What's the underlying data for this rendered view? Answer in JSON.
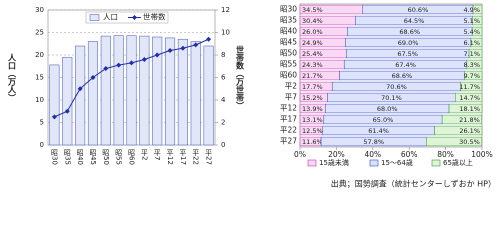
{
  "chart_data": [
    {
      "type": "combo",
      "categories": [
        "昭30",
        "昭35",
        "昭40",
        "昭45",
        "昭50",
        "昭55",
        "昭60",
        "平2",
        "平7",
        "平12",
        "平17",
        "平22",
        "平27"
      ],
      "series": [
        {
          "name": "人口",
          "type": "bar",
          "color": "#e1e6f8",
          "values": [
            17.8,
            19.5,
            22,
            23,
            24.2,
            24.3,
            24.3,
            24.2,
            24,
            23.8,
            23.5,
            23,
            22
          ]
        },
        {
          "name": "世帯数",
          "type": "line",
          "axis": "y2",
          "color": "#1f2fa8",
          "values": [
            2.5,
            3,
            5,
            6,
            6.8,
            7.1,
            7.3,
            7.6,
            8,
            8.4,
            8.6,
            8.9,
            9.4
          ]
        }
      ],
      "ylabel": "人口（万人）",
      "y2label": "世帯数（万世帯）",
      "ylim": [
        0,
        30
      ],
      "yticks": [
        0,
        5,
        10,
        15,
        20,
        25,
        30
      ],
      "y2lim": [
        0,
        12
      ],
      "y2ticks": [
        0,
        2,
        4,
        6,
        8,
        10,
        12
      ],
      "grid": true
    },
    {
      "type": "stackedbar",
      "categories": [
        "昭30",
        "昭35",
        "昭40",
        "昭45",
        "昭50",
        "昭55",
        "昭60",
        "平2",
        "平7",
        "平12",
        "平17",
        "平22",
        "平27"
      ],
      "series": [
        {
          "name": "15歳未満",
          "color": "#f8d8f3",
          "values": [
            34.5,
            30.4,
            26.0,
            24.9,
            25.4,
            24.3,
            21.7,
            17.7,
            15.2,
            13.9,
            13.1,
            12.5,
            11.6
          ],
          "value_labels": [
            "34.5%",
            "30.4%",
            "26.0%",
            "24.9%",
            "25.4%",
            "24.3%",
            "21.7%",
            "17.7%",
            "15.2%",
            "13.9%",
            "13.1%",
            "12.5%",
            "11.6%"
          ]
        },
        {
          "name": "15～64歳",
          "color": "#dde3fb",
          "values": [
            60.6,
            64.5,
            68.6,
            69.0,
            67.5,
            67.4,
            68.6,
            70.6,
            70.1,
            68.0,
            65.0,
            61.4,
            57.8
          ],
          "value_labels": [
            "60.6%",
            "64.5%",
            "68.6%",
            "69.0%",
            "67.5%",
            "67.4%",
            "68.6%",
            "70.6%",
            "70.1%",
            "68.0%",
            "65.0%",
            "61.4%",
            "57.8%"
          ]
        },
        {
          "name": "65歳以上",
          "color": "#def4d6",
          "values": [
            4.9,
            5.1,
            5.4,
            6.1,
            7.1,
            8.3,
            9.7,
            11.7,
            14.7,
            18.1,
            21.8,
            26.1,
            30.5
          ],
          "value_labels": [
            "4.9%",
            "5.1%",
            "5.4%",
            "6.1%",
            "7.1%",
            "8.3%",
            "9.7%",
            "11.7%",
            "14.7%",
            "18.1%",
            "21.8%",
            "26.1%",
            "30.5%"
          ]
        }
      ],
      "xlim": [
        0,
        100
      ],
      "xticks": [
        {
          "value": 0,
          "label": "0%"
        },
        {
          "value": 20,
          "label": "20%"
        },
        {
          "value": 40,
          "label": "40%"
        },
        {
          "value": 60,
          "label": "60%"
        },
        {
          "value": 80,
          "label": "80%"
        },
        {
          "value": 100,
          "label": "100%"
        }
      ],
      "legend": "bottom"
    }
  ],
  "source": "出典；国勢調査（統計センターしずおか HP）"
}
